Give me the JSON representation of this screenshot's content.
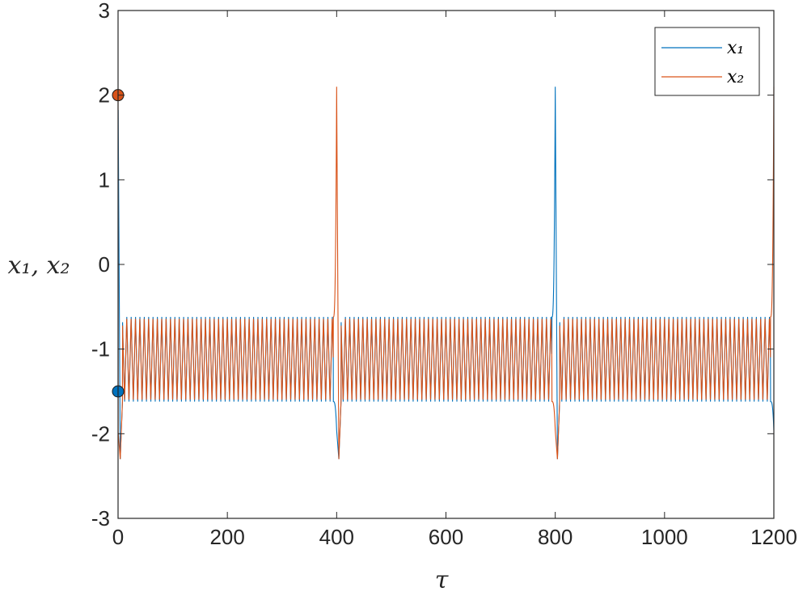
{
  "chart_data": {
    "type": "line",
    "title": "",
    "xlabel": "τ",
    "ylabel": "x₁, x₂",
    "xlim": [
      0,
      1200
    ],
    "ylim": [
      -3,
      3
    ],
    "xticks": [
      0,
      200,
      400,
      600,
      800,
      1000,
      1200
    ],
    "yticks": [
      3,
      2,
      1,
      0,
      -1,
      -2,
      -3
    ],
    "grid": false,
    "legend_position": "top-right",
    "oscillation": {
      "period": 8,
      "high": -0.62,
      "low": -1.62,
      "bursts_at": [
        0,
        400,
        800,
        1200
      ],
      "burst_peak": 2.1,
      "burst_trough": -2.3
    },
    "series": [
      {
        "name": "x₁",
        "color": "#0072BD",
        "initial_value": -1.5
      },
      {
        "name": "x₂",
        "color": "#D95319",
        "initial_value": 2.0
      }
    ]
  }
}
